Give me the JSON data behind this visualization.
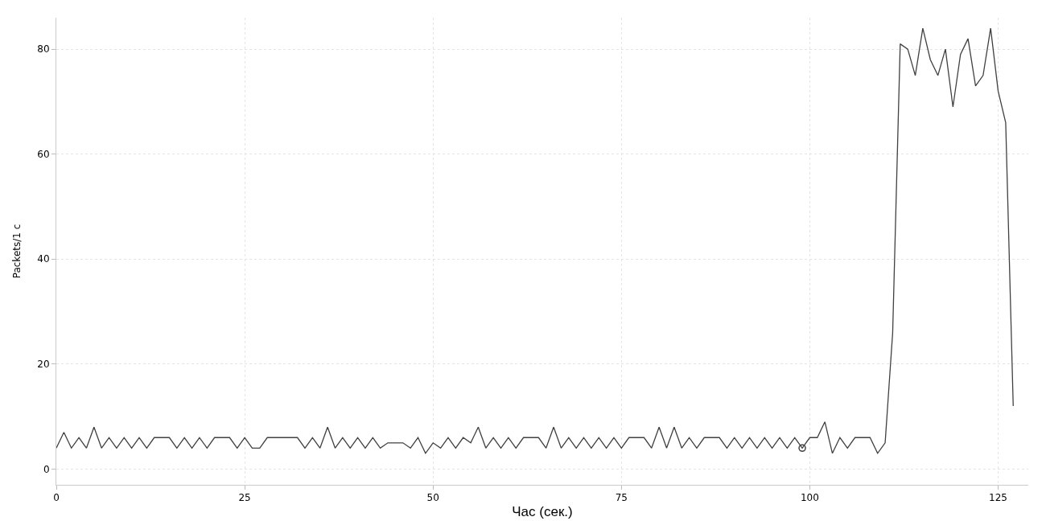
{
  "chart_data": {
    "type": "line",
    "xlabel": "Час (сек.)",
    "ylabel": "Packets/1 c",
    "xlim": [
      0,
      129
    ],
    "ylim": [
      -3,
      86
    ],
    "xticks": [
      0,
      25,
      50,
      75,
      100,
      125
    ],
    "yticks": [
      0,
      20,
      40,
      60,
      80
    ],
    "grid": true,
    "series": [
      {
        "color": "#404040",
        "marker": "none",
        "line_style": "solid",
        "x": [
          0,
          1,
          2,
          3,
          4,
          5,
          6,
          7,
          8,
          9,
          10,
          11,
          12,
          13,
          14,
          15,
          16,
          17,
          18,
          19,
          20,
          21,
          22,
          23,
          24,
          25,
          26,
          27,
          28,
          29,
          30,
          31,
          32,
          33,
          34,
          35,
          36,
          37,
          38,
          39,
          40,
          41,
          42,
          43,
          44,
          45,
          46,
          47,
          48,
          49,
          50,
          51,
          52,
          53,
          54,
          55,
          56,
          57,
          58,
          59,
          60,
          61,
          62,
          63,
          64,
          65,
          66,
          67,
          68,
          69,
          70,
          71,
          72,
          73,
          74,
          75,
          76,
          77,
          78,
          79,
          80,
          81,
          82,
          83,
          84,
          85,
          86,
          87,
          88,
          89,
          90,
          91,
          92,
          93,
          94,
          95,
          96,
          97,
          98,
          99,
          100,
          101,
          102,
          103,
          104,
          105,
          106,
          107,
          108,
          109,
          110,
          111,
          112,
          113,
          114,
          115,
          116,
          117,
          118,
          119,
          120,
          121,
          122,
          123,
          124,
          125,
          126,
          127
        ],
        "values": [
          4,
          7,
          4,
          6,
          4,
          8,
          4,
          6,
          4,
          6,
          4,
          6,
          4,
          6,
          6,
          6,
          4,
          6,
          4,
          6,
          4,
          6,
          6,
          6,
          4,
          6,
          4,
          4,
          6,
          6,
          6,
          6,
          6,
          4,
          6,
          4,
          8,
          4,
          6,
          4,
          6,
          4,
          6,
          4,
          5,
          5,
          5,
          4,
          6,
          3,
          5,
          4,
          6,
          4,
          6,
          5,
          8,
          4,
          6,
          4,
          6,
          4,
          6,
          6,
          6,
          4,
          8,
          4,
          6,
          4,
          6,
          4,
          6,
          4,
          6,
          4,
          6,
          6,
          6,
          4,
          8,
          4,
          8,
          4,
          6,
          4,
          6,
          6,
          6,
          4,
          6,
          4,
          6,
          4,
          6,
          4,
          6,
          4,
          6,
          4,
          6,
          6,
          9,
          3,
          6,
          4,
          6,
          6,
          6,
          3,
          5,
          26,
          81,
          80,
          75,
          84,
          78,
          75,
          80,
          69,
          79,
          82,
          73,
          75,
          84,
          72,
          66,
          12
        ]
      },
      {
        "type": "scatter",
        "color": "#404040",
        "marker": "circle",
        "x": [
          99
        ],
        "values": [
          4
        ]
      }
    ]
  }
}
